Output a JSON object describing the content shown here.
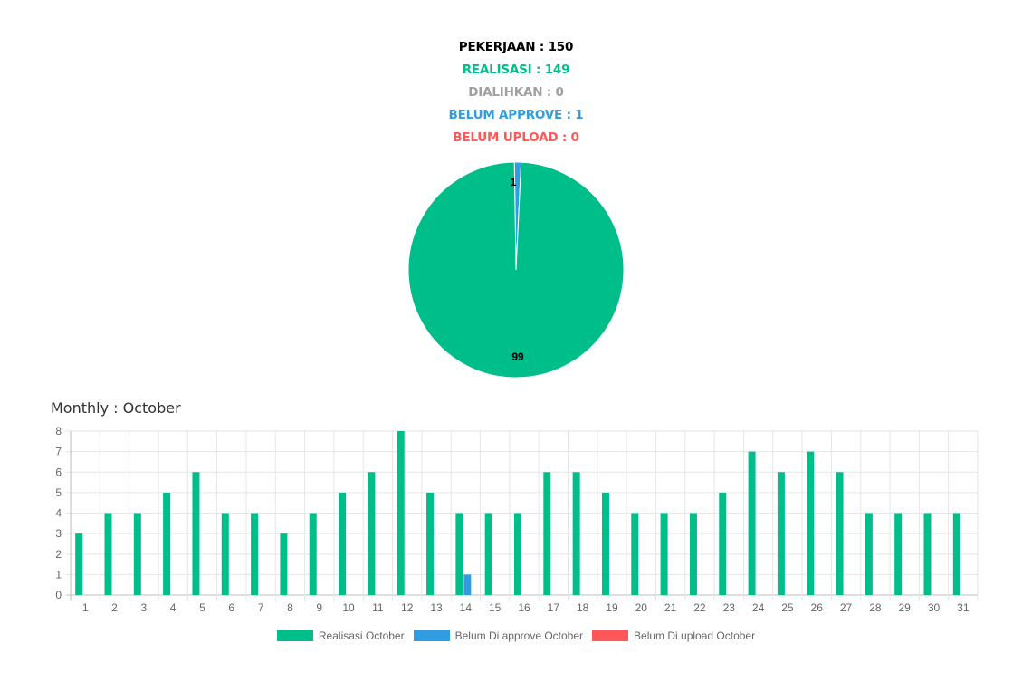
{
  "summary": {
    "pekerjaan": "PEKERJAAN : 150",
    "realisasi": "REALISASI : 149",
    "dialihkan": "DIALIHKAN : 0",
    "belum_approve": "BELUM APPROVE : 1",
    "belum_upload": "BELUM UPLOAD : 0"
  },
  "colors": {
    "black": "#000000",
    "green": "#00be8a",
    "gray": "#a0a0a0",
    "blue": "#2f9de0",
    "red": "#ff5757"
  },
  "monthly_title": "Monthly : October",
  "chart_data": [
    {
      "type": "pie",
      "slices": [
        {
          "value": 99,
          "color": "#00be8a",
          "label": "99"
        },
        {
          "value": 1,
          "color": "#2f9de0",
          "label": "1"
        }
      ]
    },
    {
      "type": "bar",
      "categories": [
        "1",
        "2",
        "3",
        "4",
        "5",
        "6",
        "7",
        "8",
        "9",
        "10",
        "11",
        "12",
        "13",
        "14",
        "15",
        "16",
        "17",
        "18",
        "19",
        "20",
        "21",
        "22",
        "23",
        "24",
        "25",
        "26",
        "27",
        "28",
        "29",
        "30",
        "31"
      ],
      "ylim": [
        0,
        8
      ],
      "yticks": [
        "0",
        "1",
        "2",
        "3",
        "4",
        "5",
        "6",
        "7",
        "8"
      ],
      "grid": true,
      "legend_position": "bottom",
      "series": [
        {
          "name": "Realisasi October",
          "color": "#00be8a",
          "values": [
            3,
            4,
            4,
            5,
            6,
            4,
            4,
            3,
            4,
            5,
            6,
            8,
            5,
            4,
            4,
            4,
            6,
            6,
            5,
            4,
            4,
            4,
            5,
            7,
            6,
            7,
            6,
            4,
            4,
            4,
            4
          ]
        },
        {
          "name": "Belum Di approve October",
          "color": "#2f9de0",
          "values": [
            0,
            0,
            0,
            0,
            0,
            0,
            0,
            0,
            0,
            0,
            0,
            0,
            0,
            1,
            0,
            0,
            0,
            0,
            0,
            0,
            0,
            0,
            0,
            0,
            0,
            0,
            0,
            0,
            0,
            0,
            0
          ]
        },
        {
          "name": "Belum Di upload October",
          "color": "#ff5757",
          "values": [
            0,
            0,
            0,
            0,
            0,
            0,
            0,
            0,
            0,
            0,
            0,
            0,
            0,
            0,
            0,
            0,
            0,
            0,
            0,
            0,
            0,
            0,
            0,
            0,
            0,
            0,
            0,
            0,
            0,
            0,
            0
          ]
        }
      ]
    }
  ]
}
